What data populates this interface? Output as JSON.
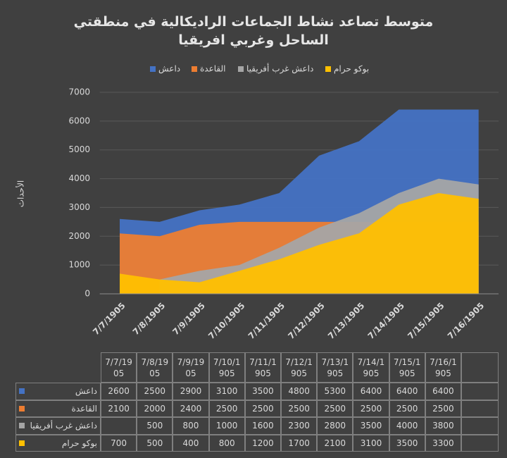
{
  "chart_data": {
    "type": "area",
    "title": "متوسط تصاعد نشاط الجماعات الراديكالية في منطقتي الساحل وغربي افريقيا",
    "y_label": "الأحداث",
    "categories": [
      "7/7/1905",
      "7/8/1905",
      "7/9/1905",
      "7/10/1905",
      "7/11/1905",
      "7/12/1905",
      "7/13/1905",
      "7/14/1905",
      "7/15/1905",
      "7/16/1905"
    ],
    "series": [
      {
        "name": "داعش",
        "color": "#4472c4",
        "values": [
          2600,
          2500,
          2900,
          3100,
          3500,
          4800,
          5300,
          6400,
          6400,
          6400
        ]
      },
      {
        "name": "القاعدة",
        "color": "#ed7d31",
        "values": [
          2100,
          2000,
          2400,
          2500,
          2500,
          2500,
          2500,
          2500,
          2500,
          2500
        ]
      },
      {
        "name": "داعش غرب أفريقيا",
        "color": "#a5a5a5",
        "values": [
          null,
          500,
          800,
          1000,
          1600,
          2300,
          2800,
          3500,
          4000,
          3800
        ]
      },
      {
        "name": "بوكو حرام",
        "color": "#ffc000",
        "values": [
          700,
          500,
          400,
          800,
          1200,
          1700,
          2100,
          3100,
          3500,
          3300
        ]
      }
    ],
    "ylim": [
      0,
      7000
    ],
    "yticks": [
      0,
      1000,
      2000,
      3000,
      4000,
      5000,
      6000,
      7000
    ],
    "grid": true,
    "legend": "top"
  }
}
